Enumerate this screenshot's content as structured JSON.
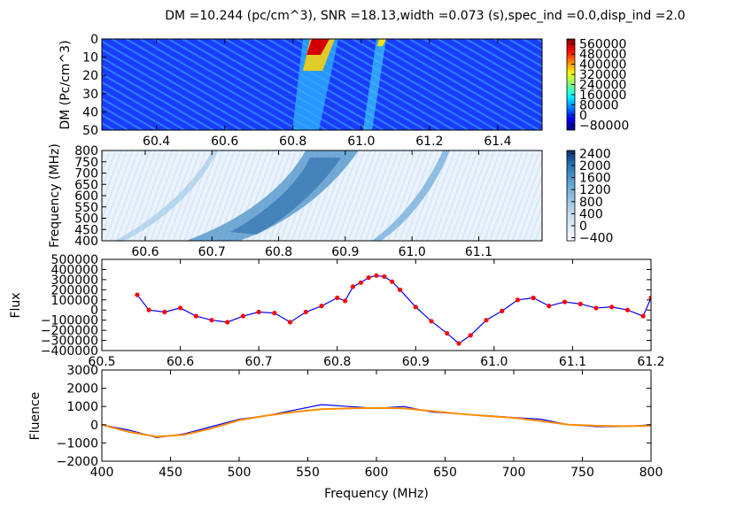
{
  "title": "DM =10.244 (pc/cm^3), SNR =18.13,width =0.073 (s),spec_ind =0.0,disp_ind =2.0",
  "chart_data": [
    {
      "type": "heatmap",
      "panel": "dm-time",
      "ylabel": "DM (Pc/cm^3)",
      "x_ticks": [
        "60.4",
        "60.6",
        "60.8",
        "61.0",
        "61.2",
        "61.4"
      ],
      "y_ticks": [
        "0",
        "10",
        "20",
        "30",
        "40",
        "50"
      ],
      "xlim": [
        60.24,
        61.53
      ],
      "ylim": [
        50,
        0
      ],
      "colormap": "jet",
      "colorbar_ticks": [
        "560000",
        "480000",
        "400000",
        "320000",
        "240000",
        "160000",
        "80000",
        "0",
        "−80000"
      ],
      "colorbar_range": [
        -120000,
        600000
      ]
    },
    {
      "type": "heatmap",
      "panel": "frequency-time",
      "ylabel": "Frequency (MHz)",
      "x_ticks": [
        "60.6",
        "60.7",
        "60.8",
        "60.9",
        "61.0",
        "61.1"
      ],
      "y_ticks": [
        "800",
        "750",
        "700",
        "650",
        "600",
        "550",
        "500",
        "450",
        "400"
      ],
      "xlim": [
        60.535,
        61.195
      ],
      "ylim": [
        400,
        800
      ],
      "colormap": "blues",
      "colorbar_ticks": [
        "2400",
        "2000",
        "1600",
        "1200",
        "800",
        "400",
        "0",
        "−400"
      ],
      "colorbar_range": [
        -500,
        2500
      ]
    },
    {
      "type": "line",
      "panel": "time-series",
      "ylabel": "Flux",
      "x_ticks": [
        "60.5",
        "60.6",
        "60.7",
        "60.8",
        "60.9",
        "61.0",
        "61.1",
        "61.2"
      ],
      "y_ticks": [
        "500000",
        "400000",
        "300000",
        "200000",
        "100000",
        "0",
        "−100000",
        "−200000",
        "−300000",
        "−400000"
      ],
      "xlim": [
        60.5,
        61.2
      ],
      "ylim": [
        -400000,
        500000
      ],
      "series": [
        {
          "color": "#0000ff",
          "marker_color": "#ff0000",
          "x": [
            60.545,
            60.56,
            60.58,
            60.6,
            60.62,
            60.64,
            60.66,
            60.68,
            60.7,
            60.72,
            60.74,
            60.76,
            60.78,
            60.8,
            60.81,
            60.82,
            60.83,
            60.84,
            60.85,
            60.86,
            60.87,
            60.88,
            60.9,
            60.92,
            60.94,
            60.955,
            60.97,
            60.99,
            61.01,
            61.03,
            61.05,
            61.07,
            61.09,
            61.11,
            61.13,
            61.15,
            61.17,
            61.19,
            61.2
          ],
          "y": [
            150000,
            0,
            -20000,
            20000,
            -60000,
            -100000,
            -120000,
            -60000,
            -20000,
            -30000,
            -120000,
            -20000,
            40000,
            120000,
            90000,
            230000,
            270000,
            320000,
            340000,
            330000,
            280000,
            200000,
            30000,
            -110000,
            -230000,
            -330000,
            -250000,
            -100000,
            -10000,
            100000,
            120000,
            40000,
            80000,
            60000,
            20000,
            30000,
            0,
            -60000,
            120000
          ]
        }
      ]
    },
    {
      "type": "line",
      "panel": "spectrum",
      "xlabel": "Frequency (MHz)",
      "ylabel": "Fluence",
      "x_ticks": [
        "400",
        "450",
        "500",
        "550",
        "600",
        "650",
        "700",
        "750",
        "800"
      ],
      "y_ticks": [
        "3000",
        "2000",
        "1000",
        "0",
        "−1000",
        "−2000"
      ],
      "xlim": [
        400,
        800
      ],
      "ylim": [
        -2000,
        3000
      ],
      "series": [
        {
          "color": "#0000ff",
          "x": [
            400,
            420,
            440,
            460,
            480,
            500,
            520,
            540,
            560,
            580,
            600,
            620,
            640,
            660,
            680,
            700,
            720,
            740,
            760,
            780,
            800
          ],
          "y": [
            0,
            -300,
            -700,
            -500,
            -100,
            300,
            500,
            800,
            1100,
            1000,
            900,
            1000,
            700,
            600,
            500,
            400,
            300,
            0,
            -100,
            -100,
            0
          ]
        },
        {
          "color": "#ff8c00",
          "x": [
            400,
            420,
            440,
            460,
            480,
            500,
            520,
            540,
            560,
            580,
            600,
            620,
            640,
            660,
            680,
            700,
            720,
            740,
            760,
            780,
            800
          ],
          "y": [
            0,
            -400,
            -650,
            -550,
            -200,
            250,
            500,
            700,
            850,
            900,
            920,
            900,
            750,
            600,
            480,
            380,
            200,
            0,
            -50,
            -80,
            -50
          ]
        }
      ]
    }
  ]
}
